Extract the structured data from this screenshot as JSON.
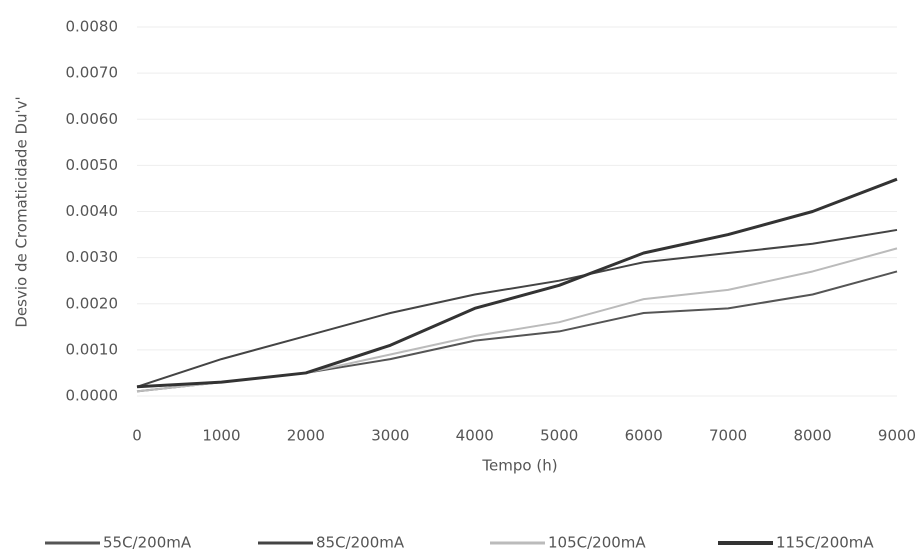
{
  "chart_data": {
    "type": "line",
    "x_label": "Tempo (h)",
    "y_label": "Desvio de Cromaticidade Du'v'",
    "x": [
      0,
      1000,
      2000,
      3000,
      4000,
      5000,
      6000,
      7000,
      8000,
      9000
    ],
    "series": [
      {
        "name": "55C/200mA",
        "color": "#555555",
        "values": [
          0.0001,
          0.0003,
          0.0005,
          0.0008,
          0.0012,
          0.0014,
          0.0018,
          0.0019,
          0.0022,
          0.0027
        ]
      },
      {
        "name": "85C/200mA",
        "color": "#444444",
        "values": [
          0.0002,
          0.0008,
          0.0013,
          0.0018,
          0.0022,
          0.0025,
          0.0029,
          0.0031,
          0.0033,
          0.0036
        ]
      },
      {
        "name": "105C/200mA",
        "color": "#bbbbbb",
        "values": [
          0.0001,
          0.0003,
          0.0005,
          0.0009,
          0.0013,
          0.0016,
          0.0021,
          0.0023,
          0.0027,
          0.0032
        ]
      },
      {
        "name": "115C/200mA",
        "color": "#333333",
        "values": [
          0.0002,
          0.0003,
          0.0005,
          0.0011,
          0.0019,
          0.0024,
          0.0031,
          0.0035,
          0.004,
          0.0047
        ]
      }
    ],
    "xlim": [
      0,
      9000
    ],
    "xticks": [
      0,
      1000,
      2000,
      3000,
      4000,
      5000,
      6000,
      7000,
      8000,
      9000
    ],
    "ylim": [
      0,
      0.008
    ],
    "yticks": [
      {
        "value": 0,
        "label": "0.0000"
      },
      {
        "value": 0.001,
        "label": "0.0010"
      },
      {
        "value": 0.002,
        "label": "0.0020"
      },
      {
        "value": 0.003,
        "label": "0.0030"
      },
      {
        "value": 0.004,
        "label": "0.0040"
      },
      {
        "value": 0.005,
        "label": "0.0050"
      },
      {
        "value": 0.006,
        "label": "0.0060"
      },
      {
        "value": 0.007,
        "label": "0.0070"
      },
      {
        "value": 0.008,
        "label": "0.0080"
      }
    ],
    "legend": "bottom"
  }
}
